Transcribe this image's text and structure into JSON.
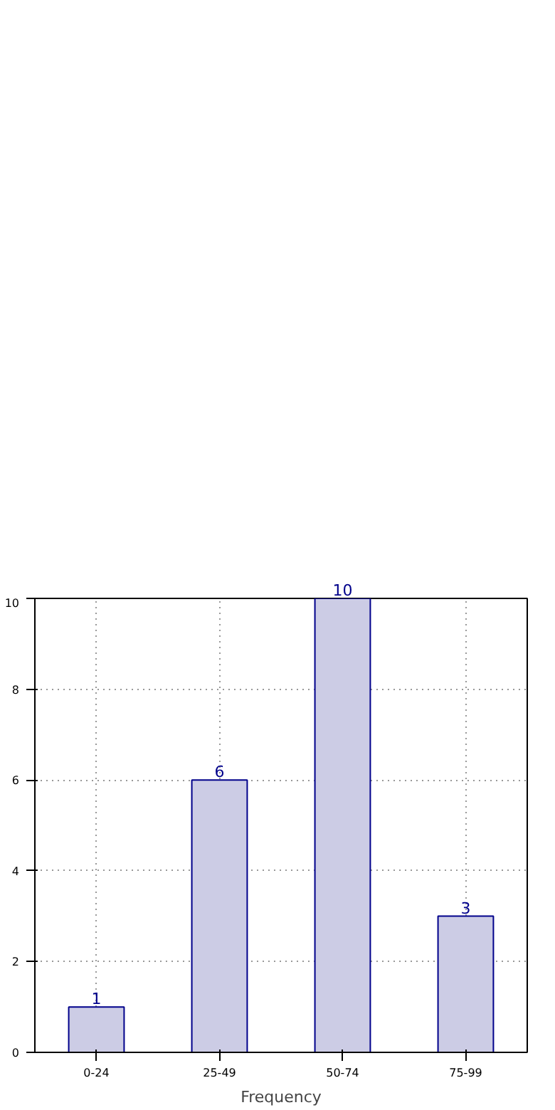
{
  "chart_data": {
    "type": "bar",
    "xlabel": "Frequency",
    "categories": [
      "0-24",
      "25-49",
      "50-74",
      "75-99"
    ],
    "values": [
      1,
      6,
      10,
      3
    ],
    "color": "#ccccE5",
    "ylim": [
      0,
      10
    ],
    "yticks": [
      0,
      2,
      4,
      6,
      8,
      10
    ],
    "grid": true,
    "data_labels": true
  }
}
